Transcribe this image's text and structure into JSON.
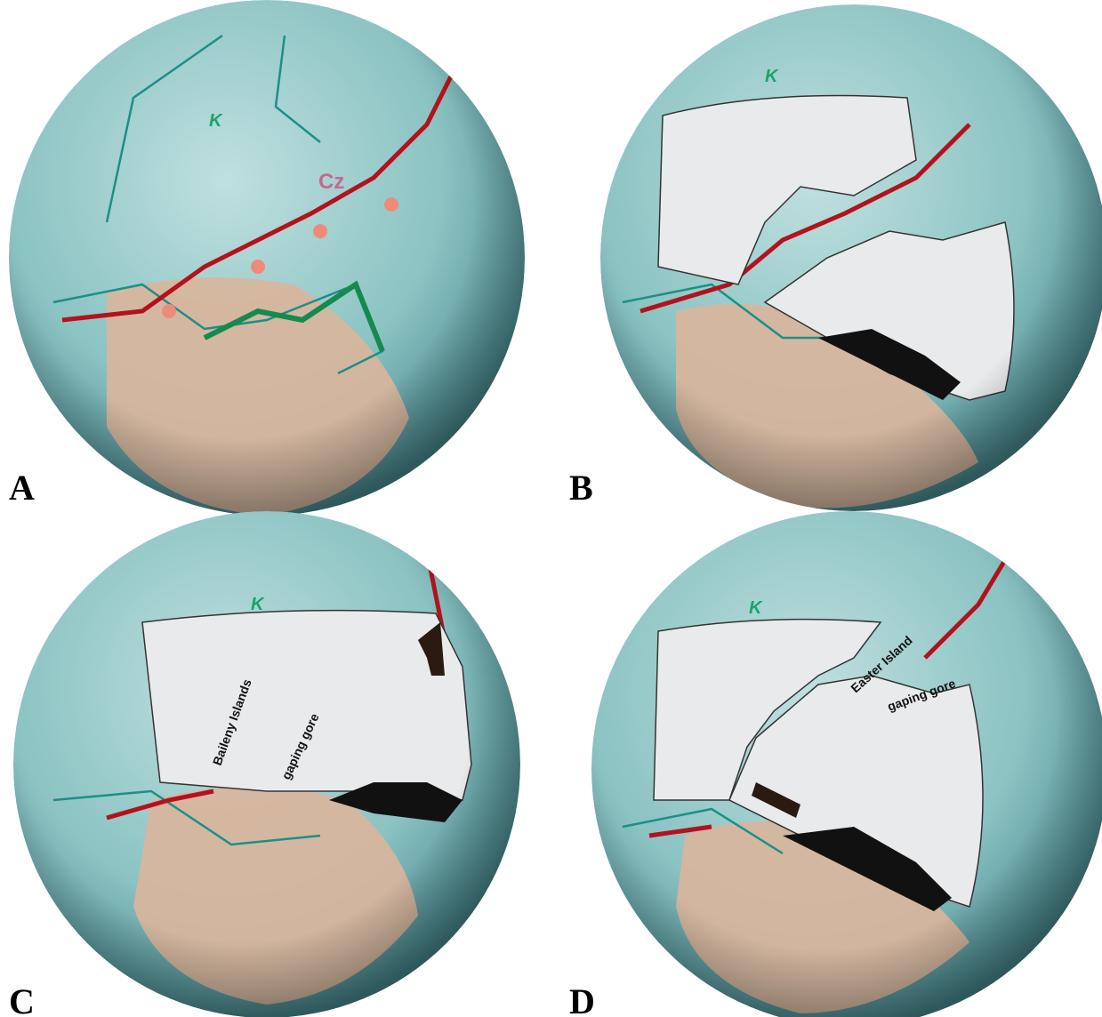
{
  "panels": [
    {
      "label": "A",
      "annotations": [
        "K",
        "Cz"
      ]
    },
    {
      "label": "B",
      "annotations": [
        "K"
      ]
    },
    {
      "label": "C",
      "annotations": [
        "K",
        "Baileny Islands",
        "gaping gore"
      ]
    },
    {
      "label": "D",
      "annotations": [
        "K",
        "Easter Island",
        "gaping gore"
      ]
    }
  ]
}
